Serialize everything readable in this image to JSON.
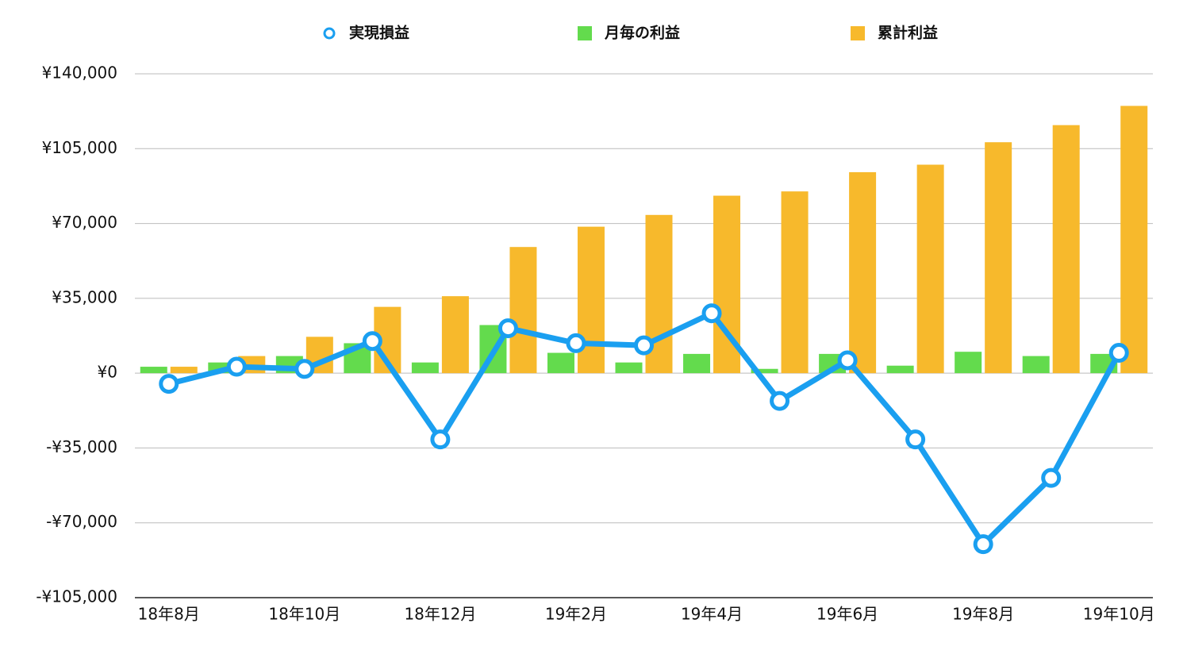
{
  "chart_data": {
    "type": "bar",
    "categories": [
      "18年8月",
      null,
      "18年10月",
      null,
      "18年12月",
      null,
      "19年2月",
      null,
      "19年4月",
      null,
      "19年6月",
      null,
      "19年8月",
      null,
      "19年10月"
    ],
    "series": [
      {
        "name": "実現損益",
        "type": "line",
        "color": "#1a9ff0",
        "values": [
          -5000,
          3000,
          2000,
          15000,
          -31000,
          21000,
          14000,
          13000,
          28000,
          -13000,
          6000,
          -31000,
          -80000,
          -49000,
          9500
        ]
      },
      {
        "name": "月毎の利益",
        "type": "bar",
        "color": "#63db4d",
        "values": [
          3000,
          5000,
          8000,
          14000,
          5000,
          22500,
          9500,
          5000,
          9000,
          2000,
          9000,
          3500,
          10000,
          8000,
          9000
        ]
      },
      {
        "name": "累計利益",
        "type": "bar",
        "color": "#f7b92c",
        "values": [
          3000,
          8000,
          17000,
          31000,
          36000,
          59000,
          68500,
          74000,
          83000,
          85000,
          94000,
          97500,
          108000,
          116000,
          125000
        ]
      }
    ],
    "ylim": [
      -105000,
      140000
    ],
    "yticks": [
      {
        "value": -105000,
        "label": "-¥105,000"
      },
      {
        "value": -70000,
        "label": "-¥70,000"
      },
      {
        "value": -35000,
        "label": "-¥35,000"
      },
      {
        "value": 0,
        "label": "¥0"
      },
      {
        "value": 35000,
        "label": "¥35,000"
      },
      {
        "value": 70000,
        "label": "¥70,000"
      },
      {
        "value": 105000,
        "label": "¥105,000"
      },
      {
        "value": 140000,
        "label": "¥140,000"
      }
    ],
    "grid": true,
    "legend": "top"
  }
}
